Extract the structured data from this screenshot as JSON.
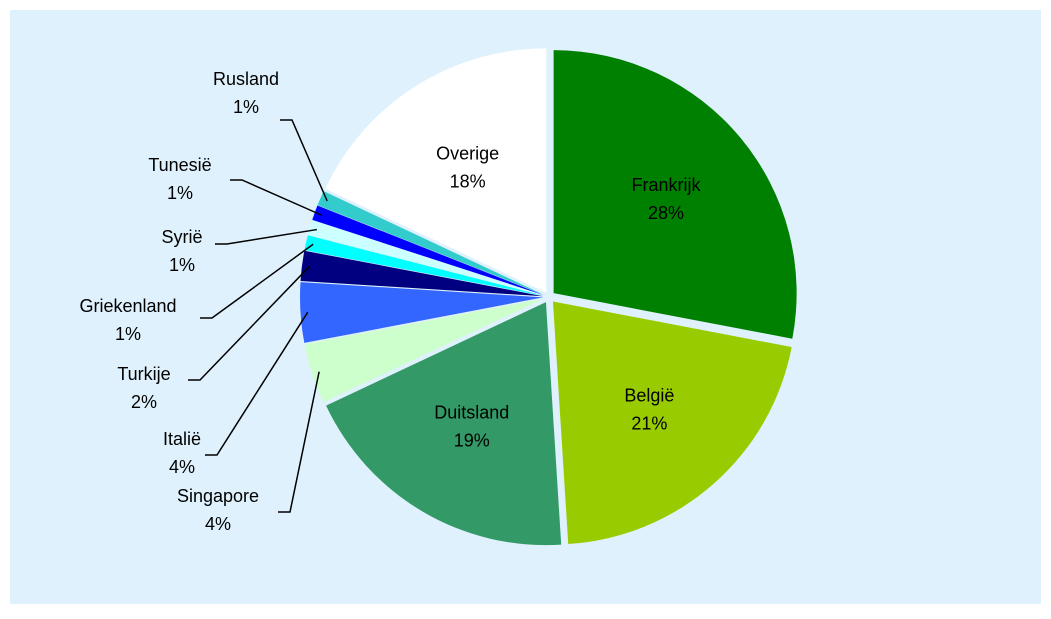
{
  "chart_data": {
    "type": "pie",
    "categories": [
      "Frankrijk",
      "België",
      "Duitsland",
      "Singapore",
      "Italië",
      "Turkije",
      "Griekenland",
      "Syrië",
      "Tunesië",
      "Rusland",
      "Overige"
    ],
    "values": [
      28,
      21,
      19,
      4,
      4,
      2,
      1,
      1,
      1,
      1,
      18
    ],
    "value_labels": [
      "28%",
      "21%",
      "19%",
      "4%",
      "4%",
      "2%",
      "1%",
      "1%",
      "1%",
      "1%",
      "18%"
    ],
    "colors": [
      "#008000",
      "#99cc00",
      "#339966",
      "#ccffcc",
      "#3366ff",
      "#000080",
      "#00ffff",
      "#ccffff",
      "#0000ff",
      "#33cccc",
      "#ffffff"
    ]
  }
}
